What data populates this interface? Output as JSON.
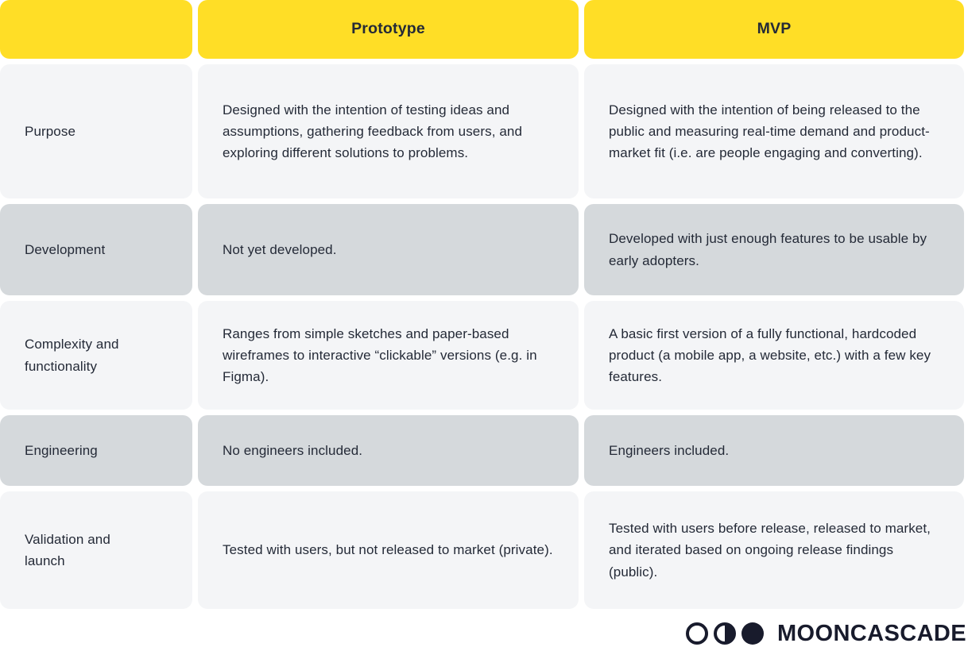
{
  "header": {
    "row_label_column": "",
    "prototype": "Prototype",
    "mvp": "MVP"
  },
  "rows": [
    {
      "label": "Purpose",
      "prototype": "Designed with the intention of testing ideas and assumptions, gathering feedback from users, and exploring different solutions to problems.",
      "mvp": "Designed with the intention of being released to the public and measuring real-time demand and product-market fit (i.e. are people engaging and converting)."
    },
    {
      "label": "Development",
      "prototype": "Not yet developed.",
      "mvp": "Developed with just enough features to be usable by early adopters."
    },
    {
      "label": "Complexity and functionality",
      "prototype": "Ranges from simple sketches and paper-based wireframes to interactive “clickable” versions (e.g. in Figma).",
      "mvp": "A basic first version of a fully functional, hardcoded product (a mobile app, a website, etc.) with a few key features."
    },
    {
      "label": "Engineering",
      "prototype": "No engineers included.",
      "mvp": "Engineers included."
    },
    {
      "label": "Validation and launch",
      "prototype": "Tested with users, but not released to market (private).",
      "mvp": "Tested with users before release, released to market, and iterated based on ongoing release findings (public)."
    }
  ],
  "footer": {
    "brand": "MOONCASCADE",
    "logo_icons": [
      "moon-outline-icon",
      "moon-half-icon",
      "moon-full-icon"
    ]
  },
  "colors": {
    "header_yellow": "#FFDE26",
    "row_light": "#F4F5F7",
    "row_dark": "#D5D9DC",
    "text": "#242A37",
    "brand_navy": "#181B2C"
  }
}
